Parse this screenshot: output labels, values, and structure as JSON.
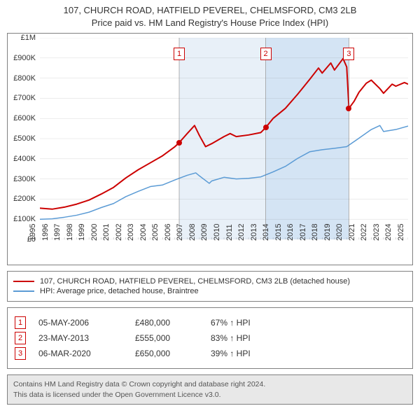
{
  "title": {
    "line1": "107, CHURCH ROAD, HATFIELD PEVEREL, CHELMSFORD, CM3 2LB",
    "line2": "Price paid vs. HM Land Registry's House Price Index (HPI)"
  },
  "chart": {
    "type": "line",
    "background_color": "#ffffff",
    "border_color": "#808080",
    "y_axis": {
      "min": 0,
      "max": 1000000,
      "step": 100000,
      "labels": [
        "£0",
        "£100K",
        "£200K",
        "£300K",
        "£400K",
        "£500K",
        "£600K",
        "£700K",
        "£800K",
        "£900K",
        "£1M"
      ],
      "tick_color": "#333333",
      "fontsize": 11
    },
    "x_axis": {
      "min": 1995,
      "max": 2025,
      "labels": [
        "1995",
        "1996",
        "1997",
        "1998",
        "1999",
        "2000",
        "2001",
        "2002",
        "2003",
        "2004",
        "2005",
        "2006",
        "2007",
        "2008",
        "2009",
        "2010",
        "2011",
        "2012",
        "2013",
        "2014",
        "2015",
        "2016",
        "2017",
        "2018",
        "2019",
        "2020",
        "2021",
        "2022",
        "2023",
        "2024",
        "2025"
      ],
      "tick_color": "#333333",
      "fontsize": 11
    },
    "grid_color": "#808080",
    "shade_colors": [
      "#e8f0f8",
      "#d4e4f4"
    ],
    "series": {
      "property": {
        "color": "#cc0000",
        "width": 2,
        "points": [
          [
            1995,
            155000
          ],
          [
            1996,
            150000
          ],
          [
            1997,
            160000
          ],
          [
            1998,
            175000
          ],
          [
            1999,
            195000
          ],
          [
            2000,
            225000
          ],
          [
            2001,
            258000
          ],
          [
            2002,
            305000
          ],
          [
            2003,
            345000
          ],
          [
            2004,
            380000
          ],
          [
            2005,
            415000
          ],
          [
            2006,
            460000
          ],
          [
            2006.35,
            480000
          ],
          [
            2007,
            525000
          ],
          [
            2007.6,
            565000
          ],
          [
            2008,
            515000
          ],
          [
            2008.5,
            460000
          ],
          [
            2009,
            475000
          ],
          [
            2010,
            510000
          ],
          [
            2010.5,
            525000
          ],
          [
            2011,
            510000
          ],
          [
            2012,
            518000
          ],
          [
            2013,
            530000
          ],
          [
            2013.4,
            555000
          ],
          [
            2014,
            600000
          ],
          [
            2015,
            650000
          ],
          [
            2016,
            720000
          ],
          [
            2017,
            795000
          ],
          [
            2017.7,
            850000
          ],
          [
            2018,
            825000
          ],
          [
            2018.7,
            875000
          ],
          [
            2019,
            840000
          ],
          [
            2019.7,
            897000
          ],
          [
            2020,
            855000
          ],
          [
            2020.18,
            650000
          ],
          [
            2020.6,
            685000
          ],
          [
            2021,
            730000
          ],
          [
            2021.6,
            775000
          ],
          [
            2022,
            790000
          ],
          [
            2022.7,
            748000
          ],
          [
            2023,
            725000
          ],
          [
            2023.7,
            770000
          ],
          [
            2024,
            760000
          ],
          [
            2024.7,
            778000
          ],
          [
            2025,
            770000
          ]
        ]
      },
      "hpi": {
        "color": "#5b9bd5",
        "width": 1.5,
        "points": [
          [
            1995,
            100000
          ],
          [
            1996,
            102000
          ],
          [
            1997,
            110000
          ],
          [
            1998,
            120000
          ],
          [
            1999,
            135000
          ],
          [
            2000,
            158000
          ],
          [
            2001,
            178000
          ],
          [
            2002,
            212000
          ],
          [
            2003,
            238000
          ],
          [
            2004,
            262000
          ],
          [
            2005,
            270000
          ],
          [
            2006,
            295000
          ],
          [
            2007,
            318000
          ],
          [
            2007.7,
            330000
          ],
          [
            2008,
            315000
          ],
          [
            2008.8,
            278000
          ],
          [
            2009,
            290000
          ],
          [
            2010,
            308000
          ],
          [
            2011,
            300000
          ],
          [
            2012,
            303000
          ],
          [
            2013,
            310000
          ],
          [
            2014,
            335000
          ],
          [
            2015,
            362000
          ],
          [
            2016,
            402000
          ],
          [
            2017,
            435000
          ],
          [
            2018,
            445000
          ],
          [
            2019,
            452000
          ],
          [
            2020,
            460000
          ],
          [
            2021,
            502000
          ],
          [
            2022,
            545000
          ],
          [
            2022.7,
            565000
          ],
          [
            2023,
            535000
          ],
          [
            2024,
            545000
          ],
          [
            2025,
            562000
          ]
        ]
      }
    },
    "sales_markers": [
      {
        "n": "1",
        "year": 2006.35,
        "price": 480000,
        "box_top_pct": 5
      },
      {
        "n": "2",
        "year": 2013.4,
        "price": 555000,
        "box_top_pct": 5
      },
      {
        "n": "3",
        "year": 2020.18,
        "price": 650000,
        "box_top_pct": 5
      }
    ],
    "marker_box_border": "#cc0000",
    "marker_box_text_color": "#cc0000",
    "marker_line_color": "#808080",
    "dot_color": "#cc0000"
  },
  "legend": {
    "items": [
      {
        "label": "107, CHURCH ROAD, HATFIELD PEVEREL, CHELMSFORD, CM3 2LB (detached house)",
        "color": "#cc0000"
      },
      {
        "label": "HPI: Average price, detached house, Braintree",
        "color": "#5b9bd5"
      }
    ]
  },
  "sales_table": {
    "rows": [
      {
        "n": "1",
        "date": "05-MAY-2006",
        "price": "£480,000",
        "pct": "67% ↑ HPI"
      },
      {
        "n": "2",
        "date": "23-MAY-2013",
        "price": "£555,000",
        "pct": "83% ↑ HPI"
      },
      {
        "n": "3",
        "date": "06-MAR-2020",
        "price": "£650,000",
        "pct": "39% ↑ HPI"
      }
    ]
  },
  "footer": {
    "line1": "Contains HM Land Registry data © Crown copyright and database right 2024.",
    "line2": "This data is licensed under the Open Government Licence v3.0."
  }
}
